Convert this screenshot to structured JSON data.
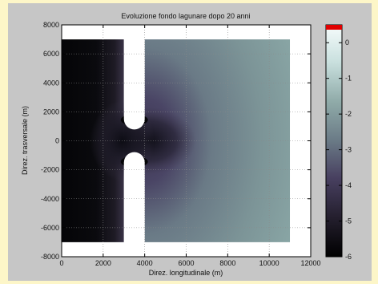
{
  "chart_data": {
    "type": "heatmap",
    "title": "Evoluzione fondo lagunare dopo 20 anni",
    "xlabel": "Direz. longitudinale (m)",
    "ylabel": "Direz. trasversale (m)",
    "xlim": [
      0,
      12000
    ],
    "ylim": [
      -8000,
      8000
    ],
    "x_ticks": [
      "0",
      "2000",
      "4000",
      "6000",
      "8000",
      "10000",
      "12000"
    ],
    "y_ticks": [
      "8000",
      "6000",
      "4000",
      "2000",
      "0",
      "-2000",
      "-4000",
      "-6000",
      "-8000"
    ],
    "domain": {
      "x": [
        0,
        11000
      ],
      "y": [
        -7000,
        7000
      ]
    },
    "open_sea": {
      "x": [
        0,
        3000
      ],
      "value_range": [
        -6,
        -5
      ]
    },
    "barrier": {
      "x": [
        3000,
        4000
      ],
      "inlet_y": [
        -1500,
        1500
      ],
      "scour_value": -6
    },
    "lagoon": {
      "x": [
        4000,
        11000
      ],
      "value_range": [
        -3.5,
        -1.5
      ]
    },
    "colorbar": {
      "ticks": [
        "0",
        "-1",
        "-2",
        "-3",
        "-4",
        "-5",
        "-6"
      ],
      "range": [
        -6,
        0.5
      ],
      "colors": [
        "#000000",
        "#241f2e",
        "#484060",
        "#6a7a86",
        "#90aba9",
        "#c9e0de",
        "#f6fcfc"
      ],
      "top_marker_color": "#e00000"
    },
    "grid": true
  }
}
